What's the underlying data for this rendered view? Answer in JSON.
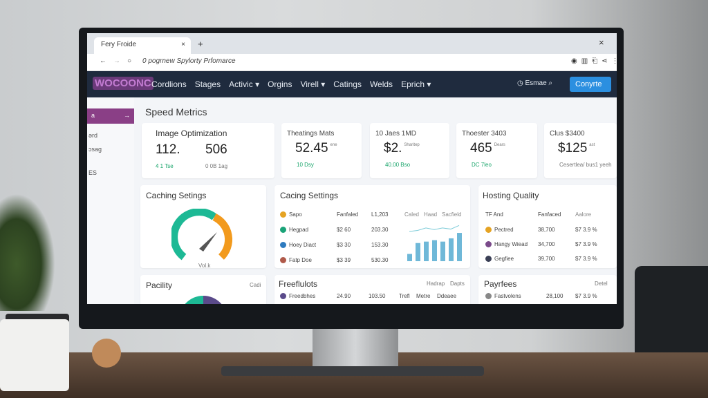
{
  "browser": {
    "tab_title": "Fery Froide",
    "new_tab": "+",
    "close": "×",
    "url": "0  pogrnew Spylorty Prfomarce"
  },
  "nav": {
    "logo": "WOCOONC",
    "items": [
      "Cordlions",
      "Stages",
      "Activic ▾",
      "Orgins",
      "Virell ▾",
      "Catings",
      "Welds",
      "Eprich ▾"
    ],
    "search_label": "Esmae",
    "cta": "Conyrte",
    "cta_color": "#2b8fe0"
  },
  "sidebar": {
    "items": [
      "a",
      "ərd",
      "ɔsag",
      "ES"
    ],
    "active_color": "#8a3f86"
  },
  "page": {
    "title": "Speed Metrics"
  },
  "metrics": [
    {
      "title": "Image Optimization",
      "value": "112.",
      "value2": "506",
      "delta": "4 1 Tse",
      "note": "0 0B 1ag"
    },
    {
      "title": "Theatings Mats",
      "value": "52.45",
      "unit": "ene",
      "delta": "10 Dsy"
    },
    {
      "title": "10 Jaes 1MD",
      "value": "$2.",
      "unit": "Sharitep",
      "delta": "40.00 Bso"
    },
    {
      "title": "Thoester 3403",
      "value": "465",
      "unit": "Dears",
      "delta": "DC 7leo"
    },
    {
      "title": "Clus $3400",
      "value": "$125",
      "unit": "ast",
      "delta": "Cesertlea/ bus1 yeeh"
    }
  ],
  "gauge_card": {
    "title": "Caching Setings",
    "label": "Vol.k",
    "fraction": 0.7
  },
  "table_card": {
    "title": "Cacing Settings",
    "headers": [
      "Caled",
      "Haad",
      "Sacfield"
    ],
    "rows": [
      [
        "Sapo",
        "Fanfaled",
        "L1,203"
      ],
      [
        "Hegpad",
        "$2 60",
        "203.30"
      ],
      [
        "Hoey Diact",
        "$3 30",
        "153.30"
      ],
      [
        "Fatp Doe",
        "$3 39",
        "530.30"
      ]
    ],
    "chart_data": {
      "type": "bar",
      "values": [
        2,
        5,
        5.4,
        5.8,
        5.4,
        6.3,
        7.8
      ]
    }
  },
  "hosting": {
    "title": "Hosting Quality",
    "headers": [
      "TF And",
      "Fanfaced",
      "Aalore"
    ],
    "rows": [
      [
        "Pectred",
        "38,700",
        "$7 3.9 %"
      ],
      [
        "Hangy Wiead",
        "34,700",
        "$7 3.9 %"
      ],
      [
        "Gegfiee",
        "39,700",
        "$7 3.9 %"
      ]
    ]
  },
  "bottom": {
    "facility": "Pacility",
    "facility_link": "Cadi",
    "freeflutots": "Freeflulots",
    "links": [
      "Hadrap",
      "Dapts"
    ],
    "row": [
      "Freedbhes",
      "24.90",
      "103.50",
      "Trefl",
      "Metre",
      "Ddeaee"
    ],
    "payrices": "Payrfees",
    "payrices_link": "Detel",
    "payrow": [
      "Fastvolens",
      "28,100",
      "$7 3.9 %"
    ]
  }
}
